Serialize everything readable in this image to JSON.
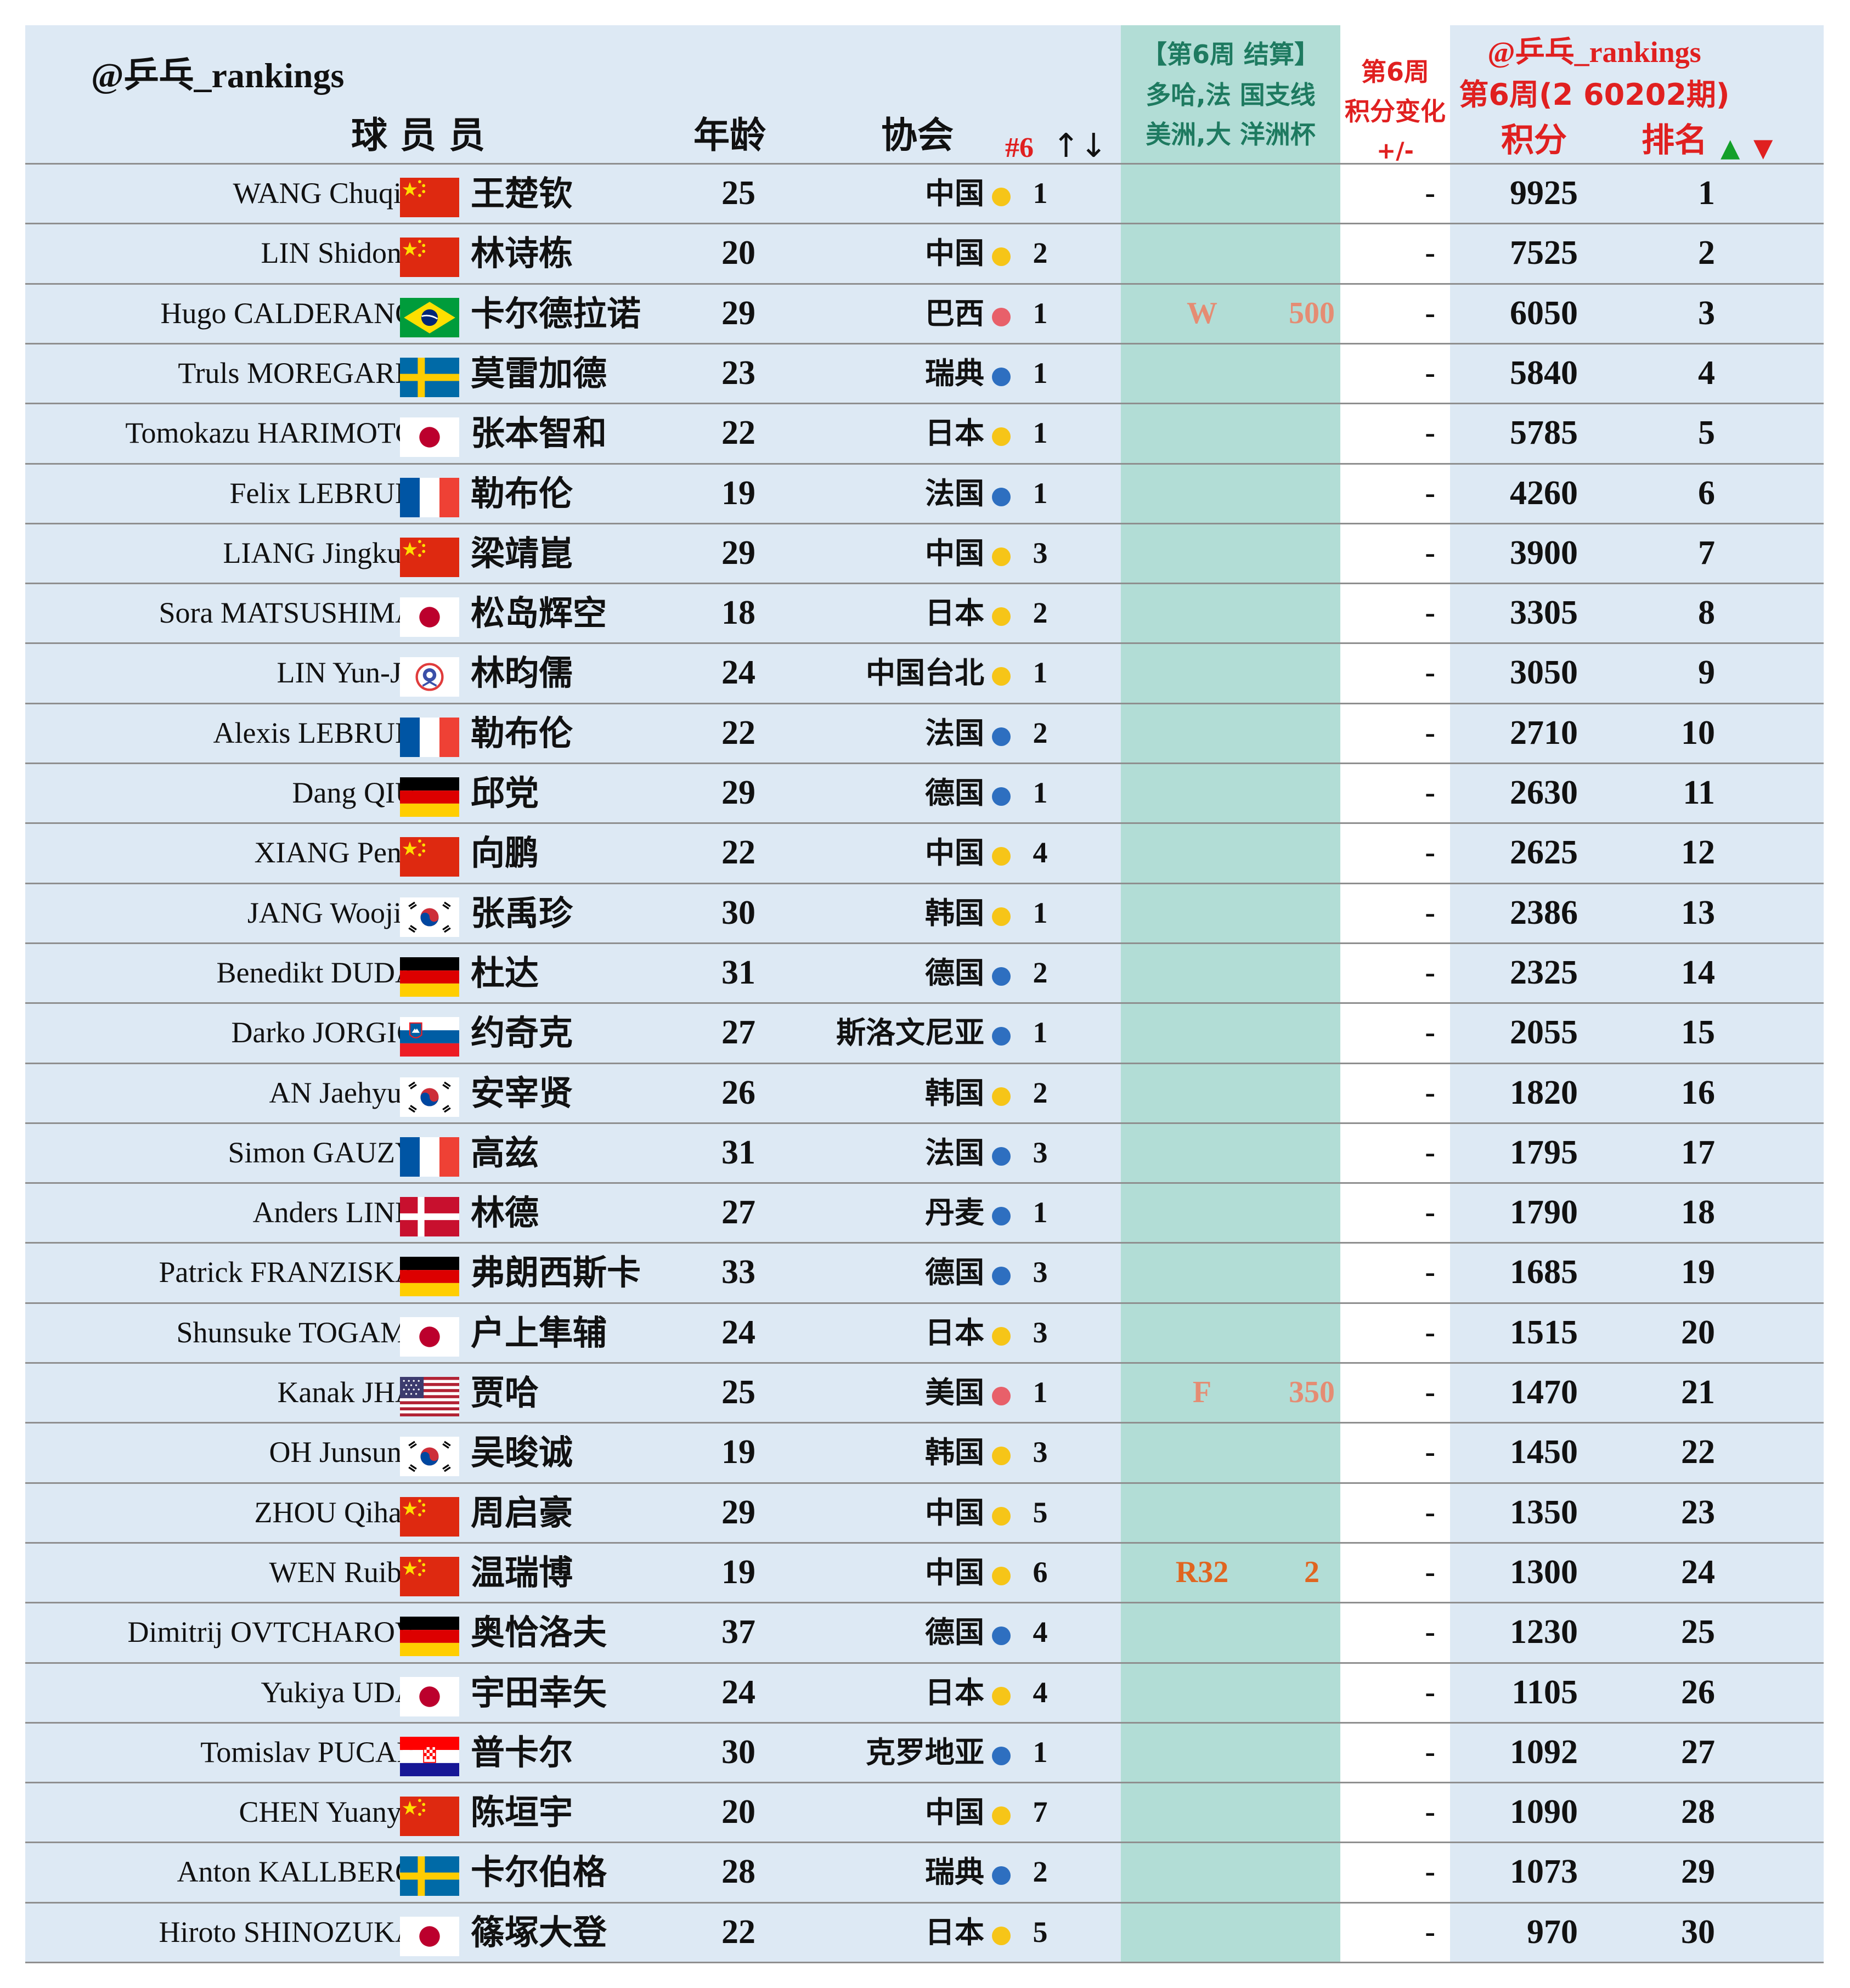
{
  "header": {
    "watermark": "@乒乓_rankings",
    "col_player": "球 员   员",
    "col_age": "年龄",
    "col_assoc": "协会",
    "col_nat_rank": "#6",
    "col_nat_rank_arrows": "↑↓",
    "event_line1": "【第6周 结算】",
    "event_line2": "多哈,法 国支线",
    "event_line3": "美洲,大 洋洲杯",
    "change_line1": "第6周",
    "change_line2": "积分变化",
    "change_line3": "+/-",
    "ranking_watermark": "@乒乓_rankings",
    "ranking_period": "第6周(2 60202期)",
    "col_points": "积分",
    "col_rank": "排名",
    "rank_up_arrow": "▲",
    "rank_down_arrow": "▼"
  },
  "colors": {
    "board": "#dde9f4",
    "event_band": "#b2ddd6",
    "change_band": "#ffffff",
    "dot_yellow": "#f6c518",
    "dot_blue": "#2e6fc0",
    "dot_pink": "#e8606a",
    "result_salmon": "#e58c73",
    "result_orange": "#e06520",
    "arrow_up": "#14a02a",
    "arrow_down": "#e02020"
  },
  "players": [
    {
      "en": "WANG Chuqin",
      "flag": "china-flag-icon",
      "cn": "王楚钦",
      "age": "25",
      "assoc": "中国",
      "dot": "yellow",
      "nat_rank": "1",
      "result": "",
      "event_points": "",
      "change": "-",
      "points": "9925",
      "rank": "1"
    },
    {
      "en": "LIN Shidong",
      "flag": "china-flag-icon",
      "cn": "林诗栋",
      "age": "20",
      "assoc": "中国",
      "dot": "yellow",
      "nat_rank": "2",
      "result": "",
      "event_points": "",
      "change": "-",
      "points": "7525",
      "rank": "2"
    },
    {
      "en": "Hugo CALDERANO",
      "flag": "brazil-flag-icon",
      "cn": "卡尔德拉诺",
      "age": "29",
      "assoc": "巴西",
      "dot": "pink",
      "nat_rank": "1",
      "result": "W",
      "event_points": "500",
      "result_color": "salmon",
      "change": "-",
      "points": "6050",
      "rank": "3"
    },
    {
      "en": "Truls MOREGARD",
      "flag": "sweden-flag-icon",
      "cn": "莫雷加德",
      "age": "23",
      "assoc": "瑞典",
      "dot": "blue",
      "nat_rank": "1",
      "result": "",
      "event_points": "",
      "change": "-",
      "points": "5840",
      "rank": "4"
    },
    {
      "en": "Tomokazu HARIMOTO",
      "flag": "japan-flag-icon",
      "cn": "张本智和",
      "age": "22",
      "assoc": "日本",
      "dot": "yellow",
      "nat_rank": "1",
      "result": "",
      "event_points": "",
      "change": "-",
      "points": "5785",
      "rank": "5"
    },
    {
      "en": "Felix LEBRUN",
      "flag": "france-flag-icon",
      "cn": "勒布伦",
      "age": "19",
      "assoc": "法国",
      "dot": "blue",
      "nat_rank": "1",
      "result": "",
      "event_points": "",
      "change": "-",
      "points": "4260",
      "rank": "6"
    },
    {
      "en": "LIANG Jingkun",
      "flag": "china-flag-icon",
      "cn": "梁靖崑",
      "age": "29",
      "assoc": "中国",
      "dot": "yellow",
      "nat_rank": "3",
      "result": "",
      "event_points": "",
      "change": "-",
      "points": "3900",
      "rank": "7"
    },
    {
      "en": "Sora MATSUSHIMA",
      "flag": "japan-flag-icon",
      "cn": "松岛辉空",
      "age": "18",
      "assoc": "日本",
      "dot": "yellow",
      "nat_rank": "2",
      "result": "",
      "event_points": "",
      "change": "-",
      "points": "3305",
      "rank": "8"
    },
    {
      "en": "LIN Yun-Ju",
      "flag": "chinese-taipei-flag-icon",
      "cn": "林昀儒",
      "age": "24",
      "assoc": "中国台北",
      "dot": "yellow",
      "nat_rank": "1",
      "result": "",
      "event_points": "",
      "change": "-",
      "points": "3050",
      "rank": "9"
    },
    {
      "en": "Alexis LEBRUN",
      "flag": "france-flag-icon",
      "cn": "勒布伦",
      "age": "22",
      "assoc": "法国",
      "dot": "blue",
      "nat_rank": "2",
      "result": "",
      "event_points": "",
      "change": "-",
      "points": "2710",
      "rank": "10"
    },
    {
      "en": "Dang QIU",
      "flag": "germany-flag-icon",
      "cn": "邱党",
      "age": "29",
      "assoc": "德国",
      "dot": "blue",
      "nat_rank": "1",
      "result": "",
      "event_points": "",
      "change": "-",
      "points": "2630",
      "rank": "11"
    },
    {
      "en": "XIANG Peng",
      "flag": "china-flag-icon",
      "cn": "向鹏",
      "age": "22",
      "assoc": "中国",
      "dot": "yellow",
      "nat_rank": "4",
      "result": "",
      "event_points": "",
      "change": "-",
      "points": "2625",
      "rank": "12"
    },
    {
      "en": "JANG Woojin",
      "flag": "korea-flag-icon",
      "cn": "张禹珍",
      "age": "30",
      "assoc": "韩国",
      "dot": "yellow",
      "nat_rank": "1",
      "result": "",
      "event_points": "",
      "change": "-",
      "points": "2386",
      "rank": "13"
    },
    {
      "en": "Benedikt DUDA",
      "flag": "germany-flag-icon",
      "cn": "杜达",
      "age": "31",
      "assoc": "德国",
      "dot": "blue",
      "nat_rank": "2",
      "result": "",
      "event_points": "",
      "change": "-",
      "points": "2325",
      "rank": "14"
    },
    {
      "en": "Darko JORGIC",
      "flag": "slovenia-flag-icon",
      "cn": "约奇克",
      "age": "27",
      "assoc": "斯洛文尼亚",
      "dot": "blue",
      "nat_rank": "1",
      "result": "",
      "event_points": "",
      "change": "-",
      "points": "2055",
      "rank": "15"
    },
    {
      "en": "AN Jaehyun",
      "flag": "korea-flag-icon",
      "cn": "安宰贤",
      "age": "26",
      "assoc": "韩国",
      "dot": "yellow",
      "nat_rank": "2",
      "result": "",
      "event_points": "",
      "change": "-",
      "points": "1820",
      "rank": "16"
    },
    {
      "en": "Simon GAUZY",
      "flag": "france-flag-icon",
      "cn": "高兹",
      "age": "31",
      "assoc": "法国",
      "dot": "blue",
      "nat_rank": "3",
      "result": "",
      "event_points": "",
      "change": "-",
      "points": "1795",
      "rank": "17"
    },
    {
      "en": "Anders LIND",
      "flag": "denmark-flag-icon",
      "cn": "林德",
      "age": "27",
      "assoc": "丹麦",
      "dot": "blue",
      "nat_rank": "1",
      "result": "",
      "event_points": "",
      "change": "-",
      "points": "1790",
      "rank": "18"
    },
    {
      "en": "Patrick FRANZISKA",
      "flag": "germany-flag-icon",
      "cn": "弗朗西斯卡",
      "age": "33",
      "assoc": "德国",
      "dot": "blue",
      "nat_rank": "3",
      "result": "",
      "event_points": "",
      "change": "-",
      "points": "1685",
      "rank": "19"
    },
    {
      "en": "Shunsuke TOGAMI",
      "flag": "japan-flag-icon",
      "cn": "户上隼辅",
      "age": "24",
      "assoc": "日本",
      "dot": "yellow",
      "nat_rank": "3",
      "result": "",
      "event_points": "",
      "change": "-",
      "points": "1515",
      "rank": "20"
    },
    {
      "en": "Kanak JHA",
      "flag": "usa-flag-icon",
      "cn": "贾哈",
      "age": "25",
      "assoc": "美国",
      "dot": "pink",
      "nat_rank": "1",
      "result": "F",
      "event_points": "350",
      "result_color": "salmon",
      "change": "-",
      "points": "1470",
      "rank": "21"
    },
    {
      "en": "OH Junsung",
      "flag": "korea-flag-icon",
      "cn": "吴晙诚",
      "age": "19",
      "assoc": "韩国",
      "dot": "yellow",
      "nat_rank": "3",
      "result": "",
      "event_points": "",
      "change": "-",
      "points": "1450",
      "rank": "22"
    },
    {
      "en": "ZHOU Qihao",
      "flag": "china-flag-icon",
      "cn": "周启豪",
      "age": "29",
      "assoc": "中国",
      "dot": "yellow",
      "nat_rank": "5",
      "result": "",
      "event_points": "",
      "change": "-",
      "points": "1350",
      "rank": "23"
    },
    {
      "en": "WEN Ruibo",
      "flag": "china-flag-icon",
      "cn": "温瑞博",
      "age": "19",
      "assoc": "中国",
      "dot": "yellow",
      "nat_rank": "6",
      "result": "R32",
      "event_points": "2",
      "result_color": "orange",
      "change": "-",
      "points": "1300",
      "rank": "24"
    },
    {
      "en": "Dimitrij OVTCHAROV",
      "flag": "germany-flag-icon",
      "cn": "奥恰洛夫",
      "age": "37",
      "assoc": "德国",
      "dot": "blue",
      "nat_rank": "4",
      "result": "",
      "event_points": "",
      "change": "-",
      "points": "1230",
      "rank": "25"
    },
    {
      "en": "Yukiya UDA",
      "flag": "japan-flag-icon",
      "cn": "宇田幸矢",
      "age": "24",
      "assoc": "日本",
      "dot": "yellow",
      "nat_rank": "4",
      "result": "",
      "event_points": "",
      "change": "-",
      "points": "1105",
      "rank": "26"
    },
    {
      "en": "Tomislav PUCAR",
      "flag": "croatia-flag-icon",
      "cn": "普卡尔",
      "age": "30",
      "assoc": "克罗地亚",
      "dot": "blue",
      "nat_rank": "1",
      "result": "",
      "event_points": "",
      "change": "-",
      "points": "1092",
      "rank": "27"
    },
    {
      "en": "CHEN Yuanyu",
      "flag": "china-flag-icon",
      "cn": "陈垣宇",
      "age": "20",
      "assoc": "中国",
      "dot": "yellow",
      "nat_rank": "7",
      "result": "",
      "event_points": "",
      "change": "-",
      "points": "1090",
      "rank": "28"
    },
    {
      "en": "Anton KALLBERG",
      "flag": "sweden-flag-icon",
      "cn": "卡尔伯格",
      "age": "28",
      "assoc": "瑞典",
      "dot": "blue",
      "nat_rank": "2",
      "result": "",
      "event_points": "",
      "change": "-",
      "points": "1073",
      "rank": "29"
    },
    {
      "en": "Hiroto SHINOZUKA",
      "flag": "japan-flag-icon",
      "cn": "篠塚大登",
      "age": "22",
      "assoc": "日本",
      "dot": "yellow",
      "nat_rank": "5",
      "result": "",
      "event_points": "",
      "change": "-",
      "points": "970",
      "rank": "30"
    }
  ]
}
